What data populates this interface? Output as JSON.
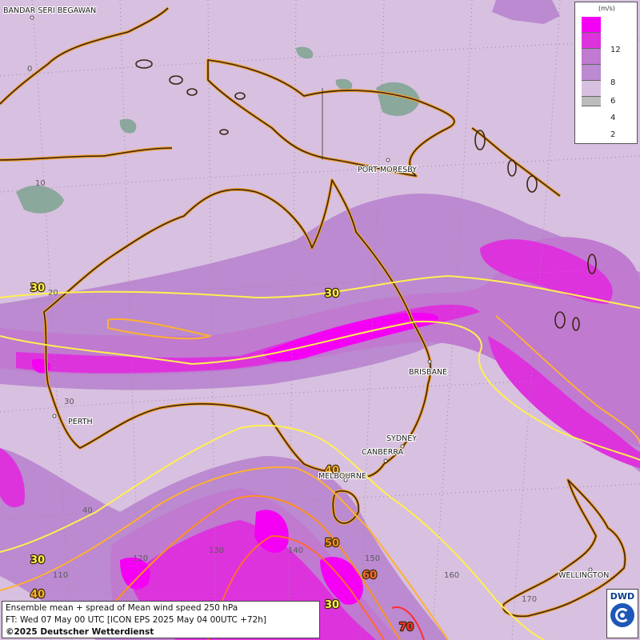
{
  "colors": {
    "base": "#d8c0e0",
    "class_4_6": "#bb8ad0",
    "class_6_8": "#c07ad0",
    "class_8_12": "#dd33dd",
    "class_12plus": "#f400f4",
    "land_grey": "#8aa89c",
    "coast": "#3b2512",
    "coast_glow": "#f0a030",
    "iso_30": "#fff050",
    "iso_40": "#ffb030",
    "iso_50": "#ff9020",
    "iso_60": "#ff6a30",
    "iso_70": "#ff3030"
  },
  "legend": {
    "unit": "(m/s)",
    "labels": [
      "12",
      "8",
      "6",
      "4",
      "2"
    ],
    "colors": [
      "#f400f4",
      "#dd33dd",
      "#c07ad0",
      "#bb8ad0",
      "#d8c0e0",
      "#bcbcbc"
    ]
  },
  "cities": [
    "BANDAR SERI BEGAWAN",
    "PORT MORESBY",
    "BRISBANE",
    "PERTH",
    "SYDNEY",
    "CANBERRA",
    "MELBOURNE",
    "WELLINGTON"
  ],
  "grid_labels": {
    "latitudes": [
      "0",
      "10",
      "20",
      "30",
      "40"
    ],
    "longitudes": [
      "110",
      "120",
      "130",
      "140",
      "150",
      "160",
      "170"
    ]
  },
  "isotachs": {
    "labels": [
      "30",
      "30",
      "40",
      "30",
      "40",
      "50",
      "60",
      "30",
      "70"
    ]
  },
  "footer": {
    "line1": "Ensemble mean + spread of Mean wind speed 250 hPa",
    "line2": "FT: Wed 07 May 00 UTC [ICON EPS 2025 May 04 00UTC +72h]",
    "line3": "©2025 Deutscher Wetterdienst"
  },
  "logo": {
    "text": "DWD"
  }
}
